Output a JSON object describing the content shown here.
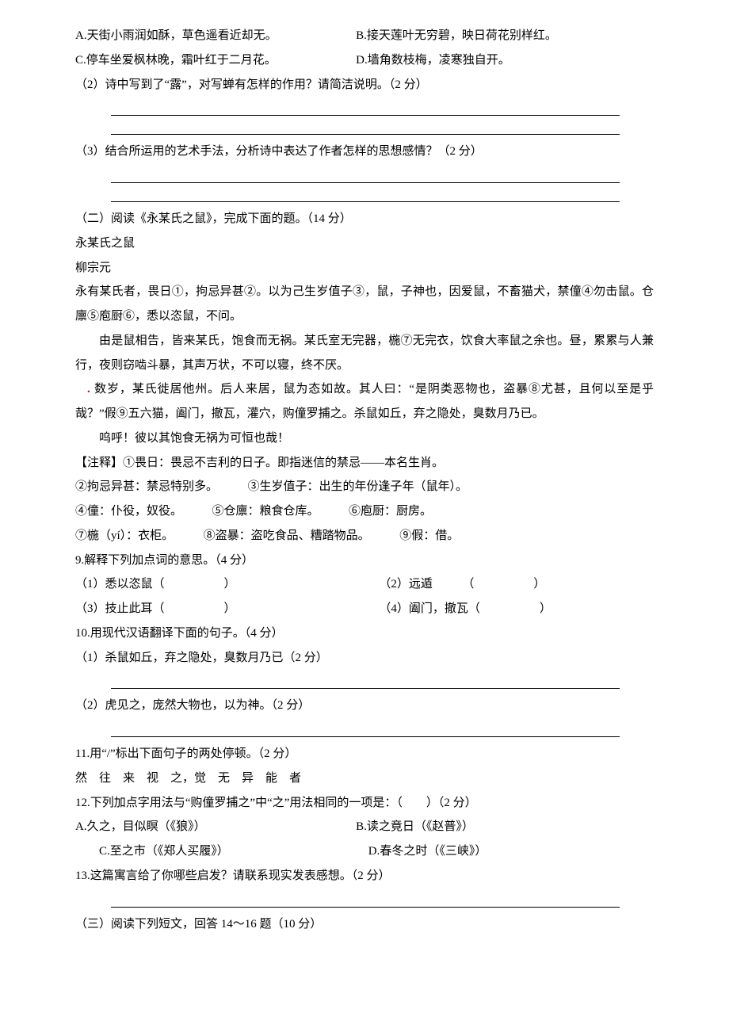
{
  "colors": {
    "text": "#000000",
    "background": "#ffffff",
    "accent_dot": "#c00000"
  },
  "typography": {
    "font_family": "SimSun",
    "font_size_pt": 11,
    "line_height": 2.05
  },
  "options_ABCD": {
    "A": "A.天街小雨润如酥，草色遥看近却无。",
    "B": "B.接天莲叶无穷碧，映日荷花别样红。",
    "C": "C.停车坐爱枫林晚，霜叶红于二月花。",
    "D": "D.墙角数枝梅，凌寒独自开。"
  },
  "q_part2": "（2）诗中写到了“露”，对写蝉有怎样的作用？请简洁说明。（2 分）",
  "q_part3": "（3）结合所运用的艺术手法，分析诗中表达了作者怎样的思想感情？（2 分）",
  "section2": {
    "heading": "（二）阅读《永某氏之鼠》，完成下面的题。（14 分）",
    "title": "永某氏之鼠",
    "author": "柳宗元",
    "p1": "永有某氏者，畏日①，拘忌异甚②。以为己生岁值子③，鼠，子神也，因爱鼠，不畜猫犬，禁僮④勿击鼠。仓廪⑤庖厨⑥，悉以恣鼠，不问。",
    "p2": "由是鼠相告，皆来某氏，饱食而无祸。某氏室无完器，椸⑦无完衣，饮食大率鼠之余也。昼，累累与人兼行，夜则窃啮斗暴，其声万状，不可以寝，终不厌。",
    "p3_prefix_dot": ".",
    "p3": "数岁，某氏徙居他州。后人来居，鼠为态如故。其人曰：“是阴类恶物也，盗暴⑧尤甚，且何以至是乎哉？”假⑨五六猫，阖门，撤瓦，灌穴，购僮罗捕之。杀鼠如丘，弃之隐处，臭数月乃已。",
    "p4": "呜呼！彼以其饱食无祸为可恒也哉！",
    "notes_heading": "【注释】①畏日：畏忌不吉利的日子。即指迷信的禁忌——本名生肖。",
    "notes_line2_a": "②拘忌异甚：禁忌特别多。",
    "notes_line2_b": "③生岁值子：出生的年份逢子年（鼠年）。",
    "notes_line3_a": "④僮：仆役，奴役。",
    "notes_line3_b": "⑤仓廪：粮食仓库。",
    "notes_line3_c": "⑥庖厨：厨房。",
    "notes_line4_a": "⑦椸（yí）：衣柜。",
    "notes_line4_b": "⑧盗暴：盗吃食品、糟踏物品。",
    "notes_line4_c": "⑨假：借。"
  },
  "q9": {
    "stem": "9.解释下列加点词的意思。（4 分）",
    "item1": "（1）悉以恣鼠（　　　　　）",
    "item2": "（2）远遁　　　（　　　　　）",
    "item3": "（3）技止此耳（　　　　　）",
    "item4": "（4）阖门，撤瓦（　　　　　）"
  },
  "q10": {
    "stem": "10.用现代汉语翻译下面的句子。（4 分）",
    "sub1": "（1）杀鼠如丘，弃之隐处，臭数月乃已（2 分）",
    "sub2": "（2）虎见之，庞然大物也，以为神。（2 分）"
  },
  "q11": {
    "stem": "11.用“/”标出下面句子的两处停顿。（2 分）",
    "sentence": "然　往　来　视　之，觉　无　异　能　者"
  },
  "q12": {
    "stem": "12.下列加点字用法与“购僮罗捕之”中“之”用法相同的一项是：（　　）（2 分）",
    "A": "A.久之，目似瞑（《狼》）",
    "B": "B.读之竟日（《赵普》）",
    "C": "C.至之市（《郑人买履》）",
    "D": "D.春冬之时（《三峡》）"
  },
  "q13": "13.这篇寓言给了你哪些启发？请联系现实发表感想。（2 分）",
  "section3": "（三）阅读下列短文，回答 14～16 题（10 分）"
}
